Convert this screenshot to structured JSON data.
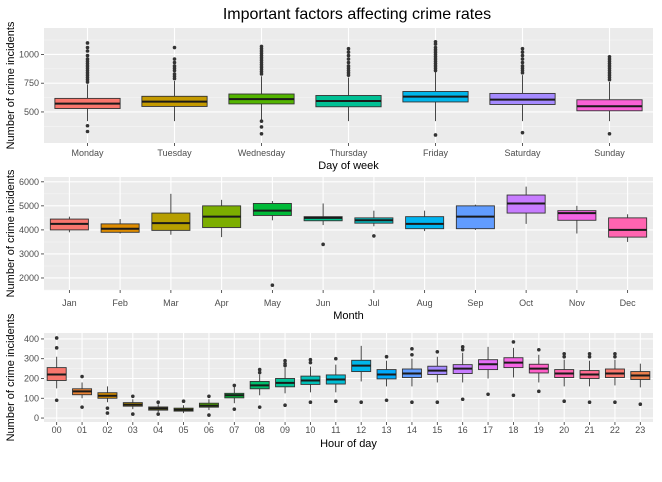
{
  "title": "Important factors affecting crime rates",
  "chart_data": [
    {
      "type": "box",
      "xlabel": "Day of week",
      "ylabel": "Number of crime incidents",
      "ylim": [
        230,
        1230
      ],
      "yticks": [
        500,
        750,
        1000
      ],
      "ytick_labels": [
        "500",
        "750",
        "1000"
      ],
      "grid": true,
      "categories": [
        "Monday",
        "Tuesday",
        "Wednesday",
        "Thursday",
        "Friday",
        "Saturday",
        "Sunday"
      ],
      "colors": [
        "#F8766D",
        "#C49A00",
        "#53B400",
        "#00C094",
        "#00B6EB",
        "#A58AFF",
        "#FB61D7"
      ],
      "boxes": [
        {
          "min": 420,
          "q1": 530,
          "median": 572,
          "q3": 618,
          "max": 740,
          "outliers": [
            1100,
            1060,
            1030,
            990,
            960,
            940,
            920,
            900,
            880,
            860,
            840,
            820,
            800,
            780,
            760,
            380,
            330
          ]
        },
        {
          "min": 420,
          "q1": 548,
          "median": 590,
          "q3": 636,
          "max": 770,
          "outliers": [
            1060,
            960,
            930,
            900,
            880,
            860,
            830,
            810,
            790
          ]
        },
        {
          "min": 420,
          "q1": 570,
          "median": 612,
          "q3": 656,
          "max": 810,
          "outliers": [
            1070,
            1050,
            1030,
            1010,
            990,
            970,
            950,
            930,
            910,
            890,
            870,
            850,
            830,
            420,
            370,
            310
          ]
        },
        {
          "min": 420,
          "q1": 545,
          "median": 595,
          "q3": 643,
          "max": 800,
          "outliers": [
            1050,
            1020,
            990,
            960,
            930,
            900,
            880,
            860,
            840,
            820
          ]
        },
        {
          "min": 420,
          "q1": 587,
          "median": 633,
          "q3": 678,
          "max": 850,
          "outliers": [
            1110,
            1090,
            1060,
            1040,
            1020,
            1000,
            980,
            960,
            940,
            920,
            900,
            880,
            860,
            300
          ]
        },
        {
          "min": 420,
          "q1": 565,
          "median": 607,
          "q3": 661,
          "max": 820,
          "outliers": [
            1050,
            1020,
            990,
            960,
            930,
            900,
            880,
            860,
            840,
            320
          ]
        },
        {
          "min": 420,
          "q1": 510,
          "median": 550,
          "q3": 606,
          "max": 760,
          "outliers": [
            980,
            960,
            940,
            920,
            900,
            880,
            860,
            840,
            820,
            800,
            780,
            310
          ]
        }
      ]
    },
    {
      "type": "box",
      "xlabel": "Month",
      "ylabel": "Number of crime incidents",
      "ylim": [
        1500,
        6200
      ],
      "yticks": [
        2000,
        3000,
        4000,
        5000,
        6000
      ],
      "ytick_labels": [
        "2000",
        "3000",
        "4000",
        "5000",
        "6000"
      ],
      "grid": true,
      "categories": [
        "Jan",
        "Feb",
        "Mar",
        "Apr",
        "May",
        "Jun",
        "Jul",
        "Aug",
        "Sep",
        "Oct",
        "Nov",
        "Dec"
      ],
      "colors": [
        "#F8766D",
        "#DE8C00",
        "#B79F00",
        "#7CAE00",
        "#00BA38",
        "#00C08B",
        "#00BFC4",
        "#00B4F0",
        "#619CFF",
        "#C77CFF",
        "#F564E3",
        "#FF64B0"
      ],
      "boxes": [
        {
          "min": 3900,
          "q1": 4000,
          "median": 4250,
          "q3": 4450,
          "max": 4550,
          "outliers": []
        },
        {
          "min": 3850,
          "q1": 3900,
          "median": 4050,
          "q3": 4250,
          "max": 4450,
          "outliers": []
        },
        {
          "min": 3800,
          "q1": 3980,
          "median": 4280,
          "q3": 4700,
          "max": 5500,
          "outliers": []
        },
        {
          "min": 3700,
          "q1": 4100,
          "median": 4550,
          "q3": 5000,
          "max": 5250,
          "outliers": []
        },
        {
          "min": 4400,
          "q1": 4600,
          "median": 4800,
          "q3": 5100,
          "max": 5200,
          "outliers": [
            1700
          ]
        },
        {
          "min": 4200,
          "q1": 4380,
          "median": 4500,
          "q3": 4550,
          "max": 5100,
          "outliers": [
            3400
          ]
        },
        {
          "min": 4150,
          "q1": 4280,
          "median": 4400,
          "q3": 4500,
          "max": 4800,
          "outliers": [
            3750
          ]
        },
        {
          "min": 3950,
          "q1": 4050,
          "median": 4250,
          "q3": 4550,
          "max": 4800,
          "outliers": []
        },
        {
          "min": 4000,
          "q1": 4050,
          "median": 4550,
          "q3": 5000,
          "max": 5050,
          "outliers": []
        },
        {
          "min": 4250,
          "q1": 4700,
          "median": 5100,
          "q3": 5450,
          "max": 5800,
          "outliers": []
        },
        {
          "min": 3850,
          "q1": 4400,
          "median": 4700,
          "q3": 4800,
          "max": 5000,
          "outliers": []
        },
        {
          "min": 3500,
          "q1": 3700,
          "median": 4000,
          "q3": 4500,
          "max": 4650,
          "outliers": []
        }
      ]
    },
    {
      "type": "box",
      "xlabel": "Hour of day",
      "ylabel": "Number of crime incidents",
      "ylim": [
        -20,
        430
      ],
      "yticks": [
        0,
        100,
        200,
        300,
        400
      ],
      "ytick_labels": [
        "0",
        "100",
        "200",
        "300",
        "400"
      ],
      "grid": true,
      "categories": [
        "00",
        "01",
        "02",
        "03",
        "04",
        "05",
        "06",
        "07",
        "08",
        "09",
        "10",
        "11",
        "12",
        "13",
        "14",
        "15",
        "16",
        "17",
        "18",
        "19",
        "20",
        "21",
        "22",
        "23"
      ],
      "colors": [
        "#F8766D",
        "#EB8335",
        "#DA8F00",
        "#C49A00",
        "#A9A400",
        "#86AC00",
        "#53B400",
        "#00BA38",
        "#00BE6C",
        "#00C094",
        "#00C0B8",
        "#00BDD4",
        "#00B6EB",
        "#00ABFD",
        "#619CFF",
        "#A58AFF",
        "#C77CFF",
        "#E36EF6",
        "#F564E3",
        "#FF61C9",
        "#FF64B0",
        "#FF6C91",
        "#F8766D",
        "#EC7F4C"
      ],
      "boxes": [
        {
          "min": 150,
          "q1": 190,
          "median": 220,
          "q3": 255,
          "max": 310,
          "outliers": [
            405,
            355,
            90
          ]
        },
        {
          "min": 100,
          "q1": 118,
          "median": 135,
          "q3": 148,
          "max": 180,
          "outliers": [
            210,
            55
          ]
        },
        {
          "min": 80,
          "q1": 100,
          "median": 113,
          "q3": 128,
          "max": 160,
          "outliers": [
            50,
            25
          ]
        },
        {
          "min": 45,
          "q1": 60,
          "median": 68,
          "q3": 78,
          "max": 95,
          "outliers": [
            110,
            20
          ]
        },
        {
          "min": 30,
          "q1": 40,
          "median": 48,
          "q3": 56,
          "max": 70,
          "outliers": [
            80,
            20
          ]
        },
        {
          "min": 25,
          "q1": 35,
          "median": 42,
          "q3": 50,
          "max": 65,
          "outliers": [
            85
          ]
        },
        {
          "min": 40,
          "q1": 55,
          "median": 63,
          "q3": 75,
          "max": 95,
          "outliers": [
            110,
            15
          ]
        },
        {
          "min": 75,
          "q1": 102,
          "median": 115,
          "q3": 125,
          "max": 160,
          "outliers": [
            165,
            45
          ]
        },
        {
          "min": 115,
          "q1": 148,
          "median": 165,
          "q3": 185,
          "max": 220,
          "outliers": [
            245,
            230,
            55
          ]
        },
        {
          "min": 125,
          "q1": 158,
          "median": 178,
          "q3": 200,
          "max": 255,
          "outliers": [
            290,
            275,
            265,
            65
          ]
        },
        {
          "min": 130,
          "q1": 170,
          "median": 190,
          "q3": 212,
          "max": 260,
          "outliers": [
            295,
            280,
            80
          ]
        },
        {
          "min": 130,
          "q1": 172,
          "median": 195,
          "q3": 218,
          "max": 270,
          "outliers": [
            300,
            85
          ]
        },
        {
          "min": 185,
          "q1": 235,
          "median": 265,
          "q3": 292,
          "max": 365,
          "outliers": [
            80
          ]
        },
        {
          "min": 160,
          "q1": 198,
          "median": 220,
          "q3": 245,
          "max": 290,
          "outliers": [
            310,
            90
          ]
        },
        {
          "min": 160,
          "q1": 205,
          "median": 225,
          "q3": 248,
          "max": 300,
          "outliers": [
            350,
            320,
            80
          ]
        },
        {
          "min": 180,
          "q1": 220,
          "median": 240,
          "q3": 262,
          "max": 310,
          "outliers": [
            335,
            80
          ]
        },
        {
          "min": 180,
          "q1": 225,
          "median": 250,
          "q3": 270,
          "max": 330,
          "outliers": [
            360,
            345,
            95
          ]
        },
        {
          "min": 200,
          "q1": 245,
          "median": 272,
          "q3": 295,
          "max": 360,
          "outliers": [
            120
          ]
        },
        {
          "min": 205,
          "q1": 255,
          "median": 280,
          "q3": 305,
          "max": 355,
          "outliers": [
            385,
            115
          ]
        },
        {
          "min": 180,
          "q1": 228,
          "median": 250,
          "q3": 272,
          "max": 320,
          "outliers": [
            345,
            135
          ]
        },
        {
          "min": 160,
          "q1": 205,
          "median": 225,
          "q3": 245,
          "max": 295,
          "outliers": [
            325,
            310,
            85
          ]
        },
        {
          "min": 160,
          "q1": 200,
          "median": 220,
          "q3": 240,
          "max": 290,
          "outliers": [
            325,
            310,
            80
          ]
        },
        {
          "min": 165,
          "q1": 205,
          "median": 225,
          "q3": 248,
          "max": 295,
          "outliers": [
            325,
            310,
            80
          ]
        },
        {
          "min": 155,
          "q1": 195,
          "median": 215,
          "q3": 235,
          "max": 275,
          "outliers": [
            70
          ]
        }
      ]
    }
  ]
}
